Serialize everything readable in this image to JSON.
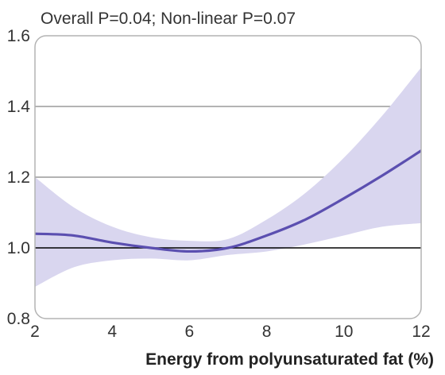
{
  "chart_data": {
    "type": "line",
    "title": "",
    "annotation": "Overall P=0.04; Non-linear P=0.07",
    "xlabel": "Energy from polyunsaturated fat (%)",
    "ylabel": "",
    "xlim": [
      2,
      12
    ],
    "ylim": [
      0.8,
      1.6
    ],
    "x_ticks": [
      "2",
      "4",
      "6",
      "8",
      "10",
      "12"
    ],
    "y_ticks": [
      "0.8",
      "1.0",
      "1.2",
      "1.4",
      "1.6"
    ],
    "reference_line": 1.0,
    "grid": "horizontal",
    "colors": {
      "line": "#5b4fb0",
      "band": "#d9d6ef",
      "grid": "#9a9a9a",
      "frame": "#b3b3b3",
      "ref": "#000000"
    },
    "series": [
      {
        "x": [
          2,
          3,
          4,
          5,
          6,
          7,
          8,
          9,
          10,
          11,
          12
        ],
        "y": [
          1.04,
          1.035,
          1.015,
          1.0,
          0.99,
          1.0,
          1.035,
          1.08,
          1.14,
          1.205,
          1.275
        ],
        "lower": [
          0.89,
          0.945,
          0.965,
          0.97,
          0.965,
          0.98,
          0.99,
          1.01,
          1.035,
          1.06,
          1.07
        ],
        "upper": [
          1.2,
          1.115,
          1.06,
          1.03,
          1.02,
          1.025,
          1.08,
          1.155,
          1.255,
          1.375,
          1.51
        ]
      }
    ]
  }
}
